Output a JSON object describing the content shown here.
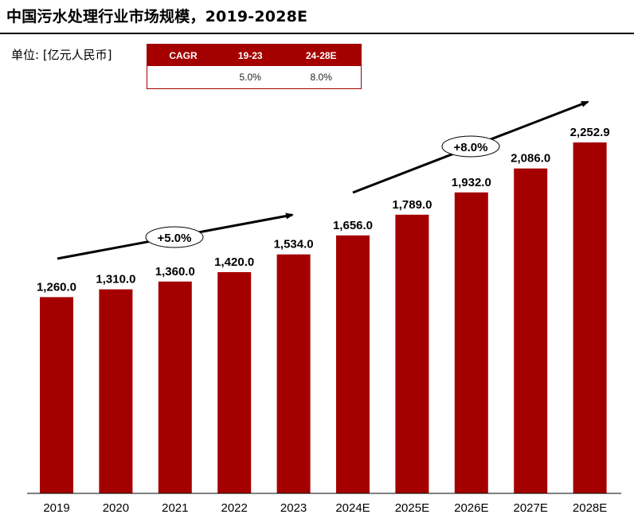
{
  "title": "中国污水处理行业市场规模，2019-2028E",
  "unit_label": "单位: [亿元人民币]",
  "cagr_table": {
    "headers": [
      "CAGR",
      "19-23",
      "24-28E"
    ],
    "row": [
      "",
      "5.0%",
      "8.0%"
    ]
  },
  "callouts": [
    "+5.0%",
    "+8.0%"
  ],
  "colors": {
    "bar": "#a50000",
    "table_header": "#a50000"
  },
  "chart_data": {
    "type": "bar",
    "title": "中国污水处理行业市场规模，2019-2028E",
    "ylabel": "",
    "xlabel": "",
    "categories": [
      "2019",
      "2020",
      "2021",
      "2022",
      "2023",
      "2024E",
      "2025E",
      "2026E",
      "2027E",
      "2028E"
    ],
    "values": [
      1260.0,
      1310.0,
      1360.0,
      1420.0,
      1534.0,
      1656.0,
      1789.0,
      1932.0,
      2086.0,
      2252.9
    ],
    "value_labels": [
      "1,260.0",
      "1,310.0",
      "1,360.0",
      "1,420.0",
      "1,534.0",
      "1,656.0",
      "1,789.0",
      "1,932.0",
      "2,086.0",
      "2,252.9"
    ],
    "grid": false,
    "annotations": [
      "+5.0%",
      "+8.0%"
    ]
  }
}
